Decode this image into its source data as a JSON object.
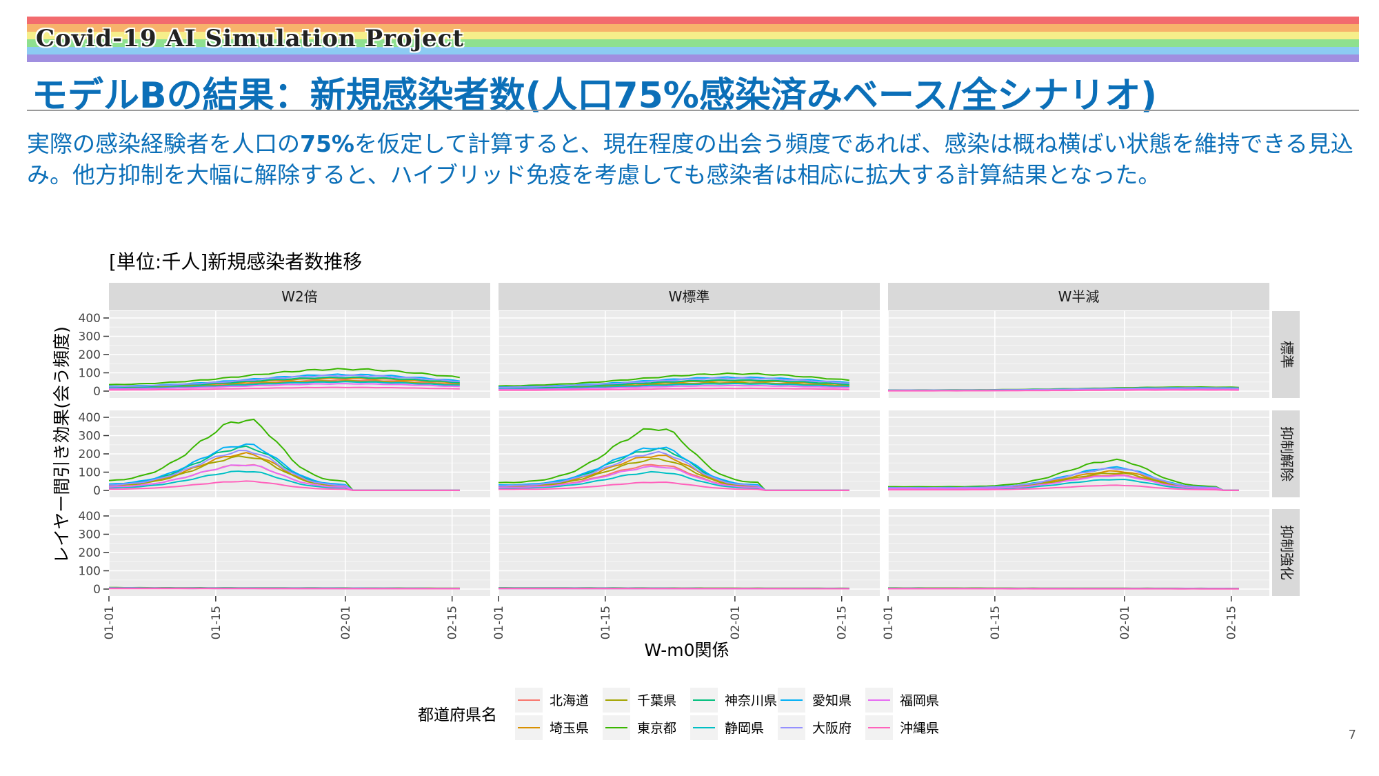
{
  "header": {
    "project_title": "Covid-19 AI Simulation Project",
    "slide_title": "モデルBの結果：新規感染者数(人口75%感染済みベース/全シナリオ)",
    "rainbow_colors": [
      "#f26b6e",
      "#f7b36b",
      "#f6ee8a",
      "#8ee08f",
      "#8ccbf2",
      "#a08fe0"
    ]
  },
  "summary": {
    "prefix": "実際の感染経験者を人口の",
    "highlight": "75%",
    "rest": "を仮定して計算すると、現在程度の出会う頻度であれば、感染は概ね横ばい状態を維持できる見込み。他方抑制を大幅に解除すると、ハイブリッド免疫を考慮しても感染者は相応に拡大する計算結果となった。"
  },
  "page_number": "7",
  "chart_data": {
    "type": "line",
    "title": "[単位:千人]新規感染者数推移",
    "xlabel": "W-m0関係",
    "ylabel": "レイヤー間引き効果(会う頻度)",
    "x_range": [
      "01-01",
      "02-20"
    ],
    "x_ticks": [
      "01-01",
      "01-15",
      "02-01",
      "02-15"
    ],
    "y_ticks": [
      0,
      100,
      200,
      300,
      400
    ],
    "ylim": [
      0,
      400
    ],
    "grid": true,
    "facet_columns": [
      "W2倍",
      "W標準",
      "W半減"
    ],
    "facet_rows": [
      "標準",
      "抑制解除",
      "抑制強化"
    ],
    "legend": {
      "title": "都道府県名",
      "placement": "bottom",
      "items": [
        {
          "name": "北海道",
          "color": "#f8766d"
        },
        {
          "name": "埼玉県",
          "color": "#d89000"
        },
        {
          "name": "千葉県",
          "color": "#a3a500"
        },
        {
          "name": "東京都",
          "color": "#39b600"
        },
        {
          "name": "神奈川県",
          "color": "#00bf7d"
        },
        {
          "name": "静岡県",
          "color": "#00bfc4"
        },
        {
          "name": "愛知県",
          "color": "#00b0f6"
        },
        {
          "name": "大阪府",
          "color": "#9590ff"
        },
        {
          "name": "福岡県",
          "color": "#e76bf3"
        },
        {
          "name": "沖縄県",
          "color": "#ff62bc"
        }
      ]
    },
    "series_peaks": {
      "標準": {
        "W2倍": {
          "peak_date": "02-01",
          "peaks": [
            60,
            70,
            55,
            120,
            75,
            50,
            90,
            85,
            40,
            20
          ]
        },
        "W標準": {
          "peak_date": "02-01",
          "peaks": [
            45,
            55,
            45,
            95,
            60,
            40,
            75,
            70,
            30,
            15
          ]
        },
        "W半減": {
          "peak_date": "02-10",
          "peaks": [
            12,
            14,
            12,
            22,
            15,
            10,
            18,
            17,
            9,
            6
          ]
        }
      },
      "抑制解除": {
        "W2倍": {
          "peak_date": "01-19",
          "peaks": [
            140,
            200,
            185,
            385,
            235,
            105,
            250,
            215,
            140,
            50
          ]
        },
        "W標準": {
          "peak_date": "01-22",
          "peaks": [
            140,
            190,
            170,
            340,
            225,
            100,
            235,
            205,
            130,
            45
          ]
        },
        "W半減": {
          "peak_date": "01-31",
          "peaks": [
            85,
            105,
            95,
            165,
            120,
            60,
            125,
            120,
            80,
            28
          ]
        }
      },
      "抑制強化": {
        "W2倍": {
          "peak_date": "01-05",
          "peaks": [
            5,
            5,
            5,
            8,
            6,
            4,
            6,
            6,
            4,
            3
          ]
        },
        "W標準": {
          "peak_date": "01-05",
          "peaks": [
            4,
            5,
            4,
            7,
            5,
            3,
            5,
            5,
            3,
            3
          ]
        },
        "W半減": {
          "peak_date": "01-05",
          "peaks": [
            3,
            4,
            3,
            6,
            4,
            3,
            4,
            4,
            3,
            2
          ]
        }
      }
    }
  }
}
